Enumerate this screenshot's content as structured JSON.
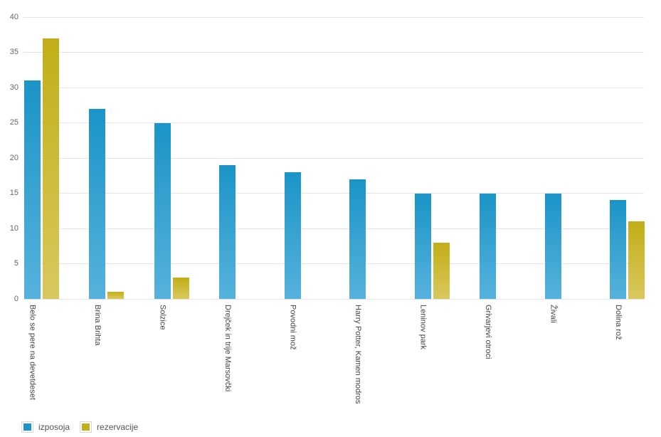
{
  "chart_data": {
    "type": "bar",
    "title": "",
    "xlabel": "",
    "ylabel": "",
    "categories": [
      "Belo se pere na devetdeset",
      "Brina Brihta",
      "Solzice",
      "Drejček in trije Marsovčki",
      "Povodni mož",
      "Harry Potter, Kamen modros",
      "Leninov park",
      "Grivarjevi otroci",
      "Živali",
      "Dolina rož"
    ],
    "series": [
      {
        "name": "izposoja",
        "color_top": "#1b94c7",
        "color_bottom": "#56b2dc",
        "values": [
          31,
          27,
          25,
          19,
          18,
          17,
          15,
          15,
          15,
          14
        ]
      },
      {
        "name": "rezervacije",
        "color_top": "#c2ae17",
        "color_bottom": "#d9c85e",
        "values": [
          37,
          1,
          3,
          0,
          0,
          0,
          8,
          0,
          0,
          11
        ]
      }
    ],
    "ylim": [
      0,
      40
    ],
    "yticks": [
      0,
      5,
      10,
      15,
      20,
      25,
      30,
      35,
      40
    ],
    "grid": "horizontal",
    "legend_position": "bottom-left",
    "colors": {
      "gridline": "#e4e4e4",
      "ytick_text": "#666666",
      "xlabel_text": "#444444",
      "legend_text": "#555555",
      "background": "#ffffff"
    }
  }
}
